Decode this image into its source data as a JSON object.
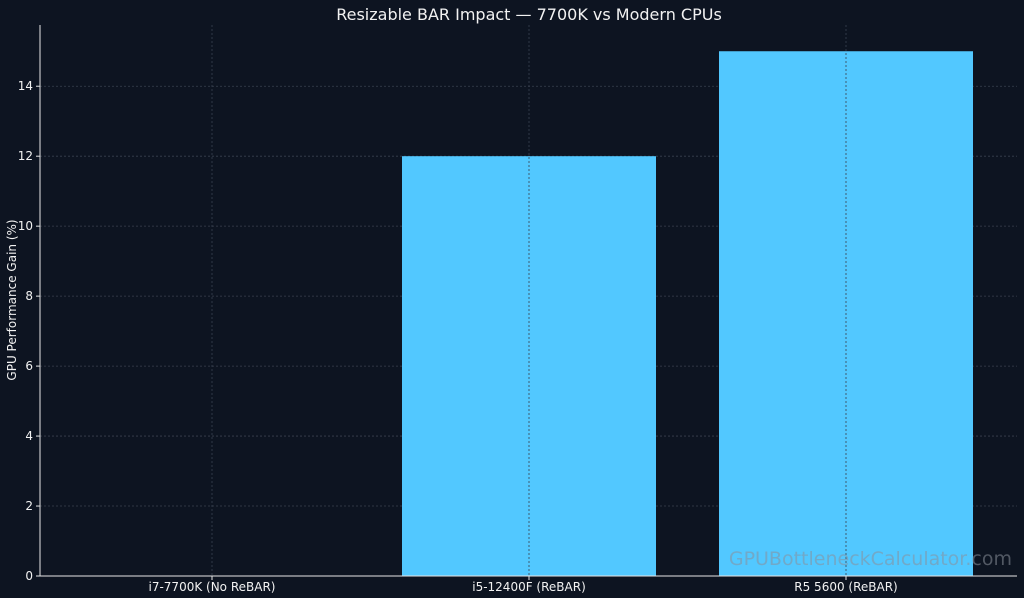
{
  "chart_data": {
    "type": "bar",
    "title": "Resizable BAR Impact — 7700K vs Modern CPUs",
    "xlabel": "",
    "ylabel": "GPU Performance Gain (%)",
    "categories": [
      "i7-7700K (No ReBAR)",
      "i5-12400F (ReBAR)",
      "R5 5600 (ReBAR)"
    ],
    "values": [
      0,
      12,
      15
    ],
    "ylim": [
      0,
      15.75
    ],
    "yticks": [
      0,
      2,
      4,
      6,
      8,
      10,
      12,
      14
    ],
    "grid": true,
    "bar_color": "#52c8ff",
    "background_color": "#0d1421"
  },
  "watermark": "GPUBottleneckCalculator.com"
}
